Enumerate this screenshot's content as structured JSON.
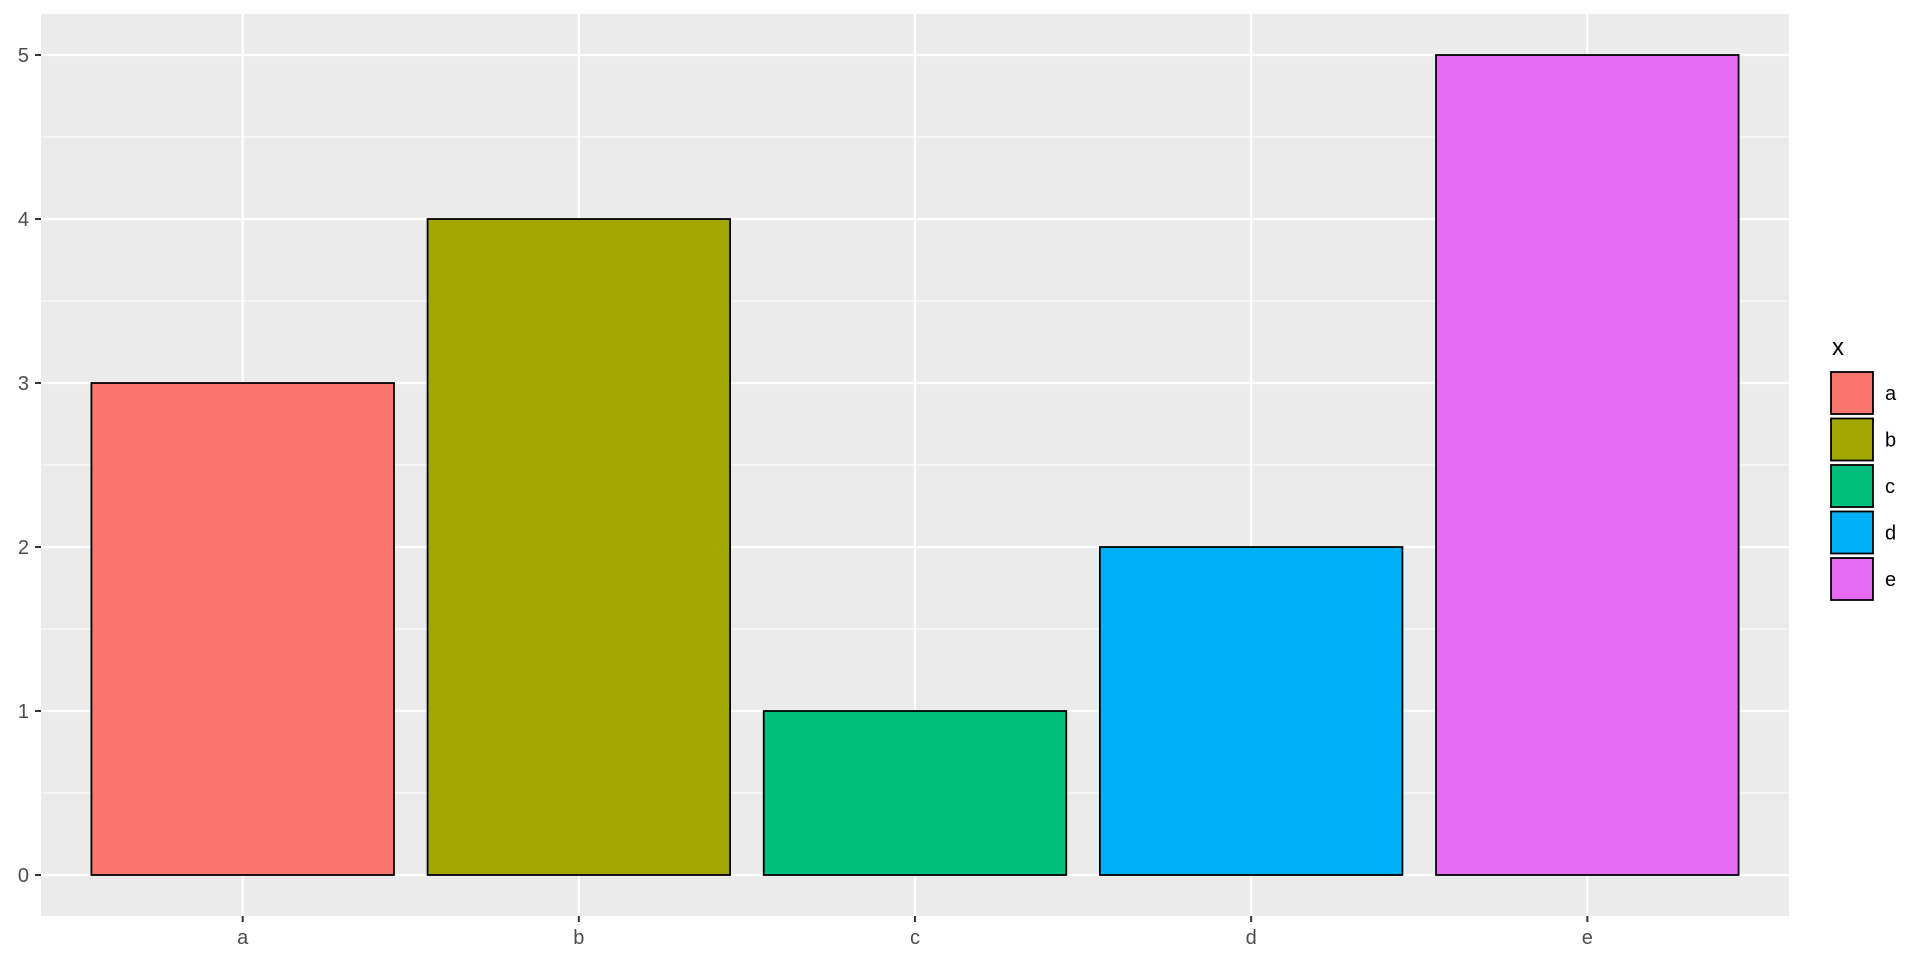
{
  "chart_data": {
    "type": "bar",
    "categories": [
      "a",
      "b",
      "c",
      "d",
      "e"
    ],
    "values": [
      3,
      4,
      1,
      2,
      5
    ],
    "colors": [
      "#F8766D",
      "#A3A500",
      "#00BF7D",
      "#00B0F6",
      "#E76BF3"
    ],
    "bar_outline_color": "#000000",
    "title": "",
    "xlabel": "",
    "ylabel": "",
    "ylim": [
      -0.25,
      5.25
    ],
    "yticks": [
      0,
      1,
      2,
      3,
      4,
      5
    ],
    "grid": true,
    "panel_background": "#EBEBEB",
    "grid_color": "#FFFFFF",
    "legend": {
      "title": "x",
      "placement": "right",
      "entries": [
        "a",
        "b",
        "c",
        "d",
        "e"
      ]
    }
  }
}
